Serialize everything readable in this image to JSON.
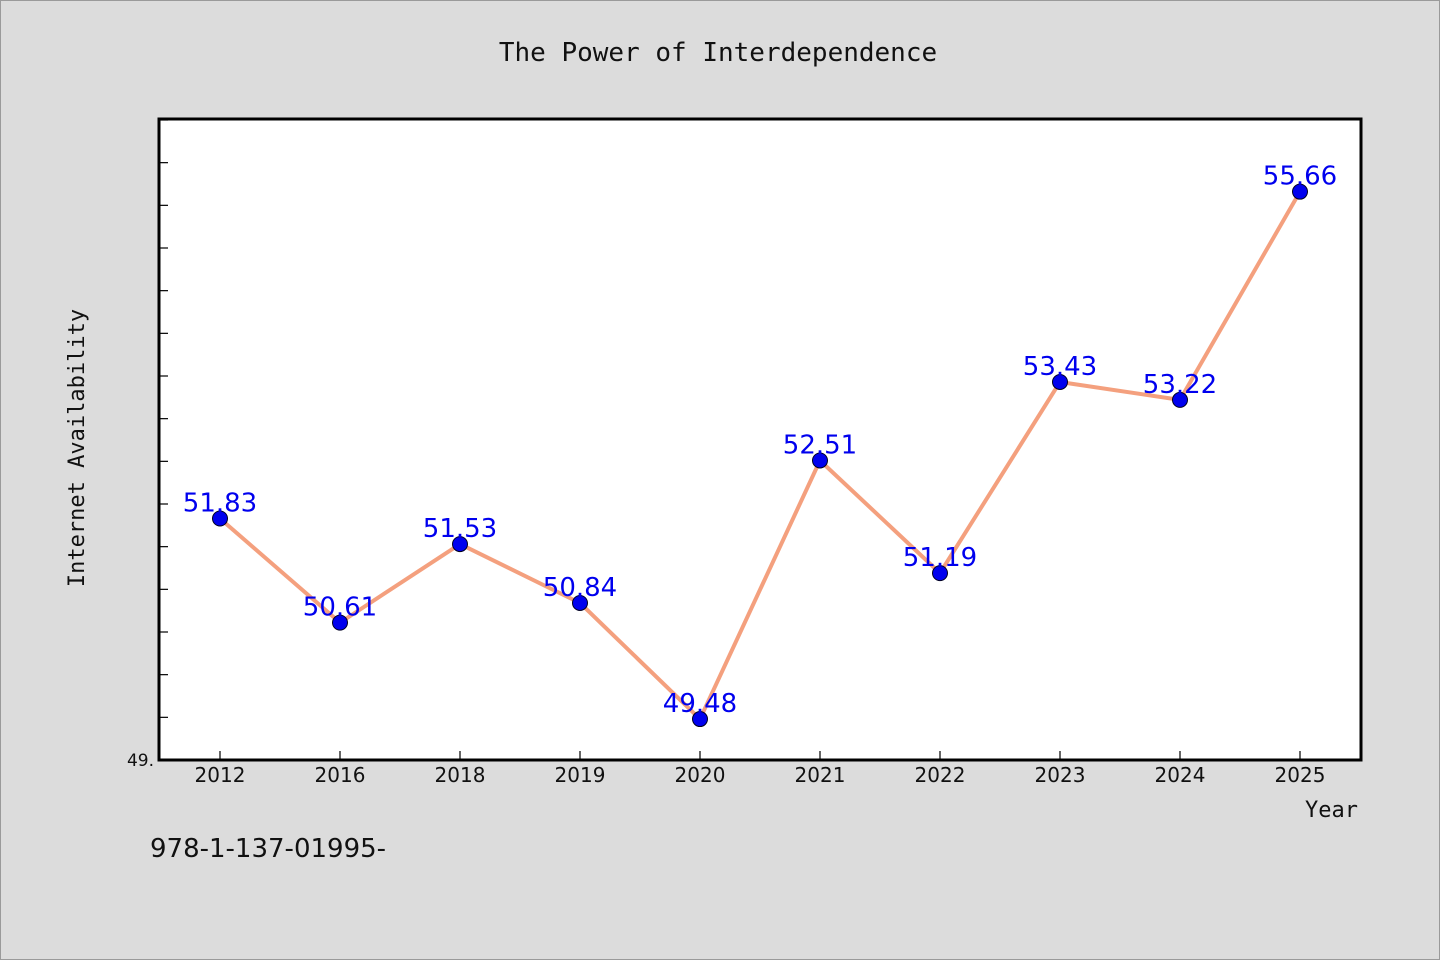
{
  "chart_data": {
    "type": "line",
    "title": "The Power of Interdependence",
    "xlabel": "Year",
    "ylabel": "Internet Availability",
    "categories": [
      "2012",
      "2016",
      "2018",
      "2019",
      "2020",
      "2021",
      "2022",
      "2023",
      "2024",
      "2025"
    ],
    "series": [
      {
        "values": [
          51.83,
          50.61,
          51.53,
          50.84,
          49.48,
          52.51,
          51.19,
          53.43,
          53.22,
          55.66
        ],
        "labels": [
          "51.83",
          "50.61",
          "51.53",
          "50.84",
          "49.48",
          "52.51",
          "51.19",
          "53.43",
          "53.22",
          "55.66"
        ]
      }
    ],
    "ylim": [
      49.0,
      56.5
    ],
    "y_tick_label": "49.",
    "grid": false,
    "line_color": "#f4a07e",
    "marker_color": "#0000ee",
    "label_color": "#0000ee"
  },
  "footer": {
    "text": "978-1-137-01995-"
  }
}
